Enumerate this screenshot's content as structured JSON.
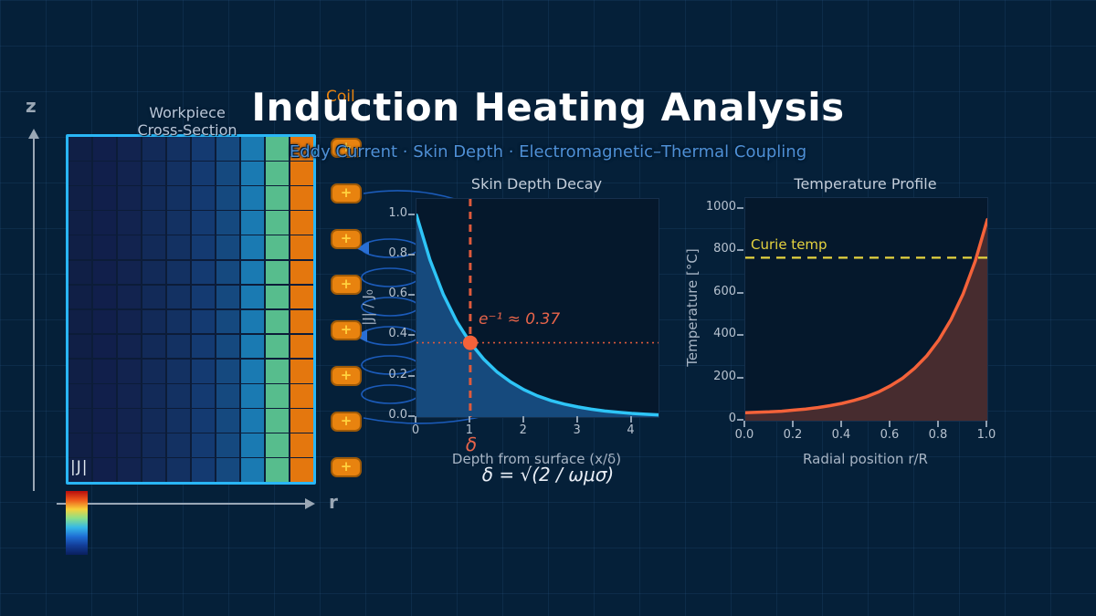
{
  "header": {
    "title": "Induction Heating Analysis",
    "subtitle": "Eddy Current · Skin Depth · Electromagnetic–Thermal Coupling"
  },
  "workpiece": {
    "label_line1": "Workpiece",
    "label_line2": "Cross-Section",
    "corner_label": "|J|",
    "z_axis_label": "z",
    "r_axis_label": "r",
    "rows": 14,
    "cols": 10,
    "column_colors": [
      "#101f46",
      "#111f4b",
      "#12234f",
      "#122a58",
      "#133162",
      "#143a71",
      "#15497f",
      "#1a7ab2",
      "#57bd8d",
      "#e4770e"
    ],
    "border_color": "#29b6f6",
    "colorbar_colors": [
      "#b80d0d",
      "#ef5a1b",
      "#f7d13a",
      "#8adf8a",
      "#35b8e8",
      "#1f6ed4",
      "#123c96",
      "#0a1f5e"
    ]
  },
  "coil": {
    "label": "Coil",
    "symbol": "+",
    "count": 8,
    "fill": "#e8830f",
    "plus_color": "#ffd23f"
  },
  "chart_data": [
    {
      "type": "area",
      "title": "Skin Depth Decay",
      "xlabel": "Depth from surface  (x/δ)",
      "ylabel": "|J| / J₀",
      "x": [
        0,
        0.25,
        0.5,
        0.75,
        1,
        1.25,
        1.5,
        1.75,
        2,
        2.25,
        2.5,
        2.75,
        3,
        3.25,
        3.5,
        3.75,
        4,
        4.25,
        4.5
      ],
      "y": [
        1,
        0.779,
        0.607,
        0.472,
        0.368,
        0.287,
        0.223,
        0.174,
        0.135,
        0.105,
        0.082,
        0.064,
        0.05,
        0.039,
        0.03,
        0.024,
        0.018,
        0.014,
        0.011
      ],
      "xlim": [
        0,
        4.5
      ],
      "ylim": [
        0,
        1.08
      ],
      "xticks": [
        "0",
        "1",
        "2",
        "3",
        "4"
      ],
      "yticks": [
        "0.0",
        "0.2",
        "0.4",
        "0.6",
        "0.8",
        "1.0"
      ],
      "grid": false,
      "line_color": "#2ec5f7",
      "fill_color": "#164a7d",
      "marker": {
        "x": 1,
        "y": 0.368,
        "color": "#f4623a"
      },
      "vline": {
        "x": 1,
        "color": "#de5a3c",
        "dash": "8,6",
        "label": "δ"
      },
      "hline": {
        "y": 0.368,
        "color": "#de5a3c",
        "dash": "2,4"
      },
      "annotation": {
        "text": "e⁻¹ ≈ 0.37",
        "x": 1.15,
        "y": 0.46
      },
      "formula": "δ = √(2 / ωμσ)"
    },
    {
      "type": "area",
      "title": "Temperature Profile",
      "xlabel": "Radial position  r/R",
      "ylabel": "Temperature  [°C]",
      "x": [
        0,
        0.05,
        0.1,
        0.15,
        0.2,
        0.25,
        0.3,
        0.35,
        0.4,
        0.45,
        0.5,
        0.55,
        0.6,
        0.65,
        0.7,
        0.75,
        0.8,
        0.85,
        0.9,
        0.95,
        1
      ],
      "y": [
        38,
        40,
        42,
        45,
        50,
        55,
        62,
        71,
        82,
        96,
        113,
        136,
        165,
        201,
        248,
        307,
        382,
        478,
        599,
        754,
        950
      ],
      "xlim": [
        0,
        1
      ],
      "ylim": [
        0,
        1052
      ],
      "xticks": [
        "0.0",
        "0.2",
        "0.4",
        "0.6",
        "0.8",
        "1.0"
      ],
      "yticks": [
        "0",
        "200",
        "400",
        "600",
        "800",
        "1000"
      ],
      "grid": false,
      "line_color": "#f4623a",
      "fill_color": "rgba(244,98,58,0.28)",
      "hline": {
        "y": 770,
        "color": "#e5d33f",
        "dash": "10,7",
        "label": "Curie temp"
      }
    }
  ]
}
